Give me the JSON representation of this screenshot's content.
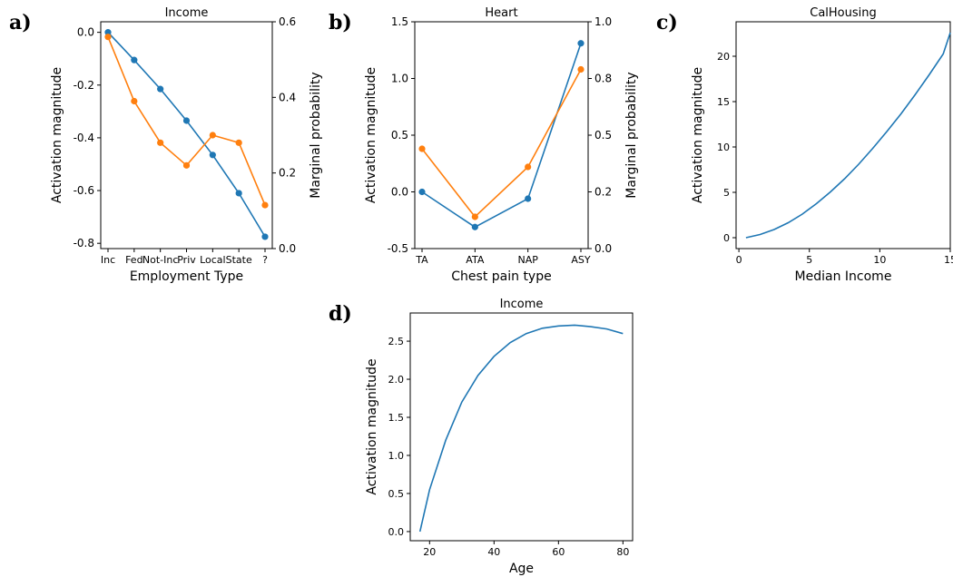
{
  "colors": {
    "blue": "#1f77b4",
    "orange": "#ff7f0e"
  },
  "chart_data": [
    {
      "panel": "a)",
      "type": "line",
      "title": "Income",
      "xlabel": "Employment Type",
      "ylabel": "Activation magnitude",
      "ylabel_right": "Marginal probability",
      "categories": [
        "Inc",
        "Fed",
        "Not-Inc",
        "Priv",
        "Local",
        "State",
        "?"
      ],
      "ylim": [
        -0.82,
        0.04
      ],
      "yticks": [
        0.0,
        -0.2,
        -0.4,
        -0.6,
        -0.8
      ],
      "ytick_labels": [
        "0.0",
        "-0.2",
        "-0.4",
        "-0.6",
        "-0.8"
      ],
      "ylim_right": [
        0.0,
        0.6
      ],
      "yticks_right": [
        0.0,
        0.2,
        0.4,
        0.6
      ],
      "ytick_labels_right": [
        "0.0",
        "0.2",
        "0.4",
        "0.6"
      ],
      "series": [
        {
          "color": "blue",
          "axis": "left",
          "values": [
            0.0,
            -0.105,
            -0.215,
            -0.335,
            -0.465,
            -0.61,
            -0.775
          ]
        },
        {
          "color": "orange",
          "axis": "right",
          "values": [
            0.56,
            0.39,
            0.28,
            0.22,
            0.3,
            0.28,
            0.115
          ]
        }
      ]
    },
    {
      "panel": "b)",
      "type": "line",
      "title": "Heart",
      "xlabel": "Chest pain type",
      "ylabel": "Activation magnitude",
      "ylabel_right": "Marginal probability",
      "categories": [
        "TA",
        "ATA",
        "NAP",
        "ASY"
      ],
      "ylim": [
        -0.5,
        1.5
      ],
      "yticks": [
        -0.5,
        0.0,
        0.5,
        1.0,
        1.5
      ],
      "ytick_labels": [
        "-0.5",
        "0.0",
        "0.5",
        "1.0",
        "1.5"
      ],
      "ylim_right": [
        0.0,
        1.0
      ],
      "yticks_right": [
        0.0,
        0.25,
        0.5,
        0.75,
        1.0
      ],
      "ytick_labels_right": [
        "0.0",
        "0.2",
        "0.5",
        "0.8",
        "1.0"
      ],
      "series": [
        {
          "color": "blue",
          "axis": "left",
          "values": [
            0.0,
            -0.31,
            -0.06,
            1.31
          ]
        },
        {
          "color": "orange",
          "axis": "right",
          "values": [
            0.44,
            0.14,
            0.36,
            0.79
          ]
        }
      ]
    },
    {
      "panel": "c)",
      "type": "line",
      "title": "CalHousing",
      "xlabel": "Median Income",
      "ylabel": "Activation magnitude",
      "xlim": [
        -0.2,
        15.0
      ],
      "xticks": [
        0,
        5,
        10,
        15
      ],
      "xtick_labels": [
        "0",
        "5",
        "10",
        "15"
      ],
      "ylim": [
        -1.2,
        23.8
      ],
      "yticks": [
        0,
        5,
        10,
        15,
        20
      ],
      "ytick_labels": [
        "0",
        "5",
        "10",
        "15",
        "20"
      ],
      "series": [
        {
          "color": "blue",
          "x": [
            0.5,
            1.5,
            2.5,
            3.5,
            4.5,
            5.5,
            6.5,
            7.5,
            8.5,
            9.5,
            10.5,
            11.5,
            12.5,
            13.5,
            14.5,
            15.0
          ],
          "y": [
            0.0,
            0.35,
            0.9,
            1.65,
            2.6,
            3.75,
            5.05,
            6.5,
            8.1,
            9.85,
            11.7,
            13.65,
            15.75,
            17.95,
            20.25,
            22.6
          ]
        }
      ]
    },
    {
      "panel": "d)",
      "type": "line",
      "title": "Income",
      "xlabel": "Age",
      "ylabel": "Activation magnitude",
      "xlim": [
        14.0,
        83.0
      ],
      "xticks": [
        20,
        40,
        60,
        80
      ],
      "xtick_labels": [
        "20",
        "40",
        "60",
        "80"
      ],
      "ylim": [
        -0.12,
        2.87
      ],
      "yticks": [
        0.0,
        0.5,
        1.0,
        1.5,
        2.0,
        2.5
      ],
      "ytick_labels": [
        "0.0",
        "0.5",
        "1.0",
        "1.5",
        "2.0",
        "2.5"
      ],
      "series": [
        {
          "color": "blue",
          "x": [
            17,
            20,
            25,
            30,
            35,
            40,
            45,
            50,
            55,
            60,
            65,
            70,
            75,
            80
          ],
          "y": [
            0.0,
            0.55,
            1.2,
            1.7,
            2.05,
            2.3,
            2.48,
            2.6,
            2.67,
            2.7,
            2.71,
            2.69,
            2.66,
            2.6
          ]
        }
      ]
    }
  ]
}
